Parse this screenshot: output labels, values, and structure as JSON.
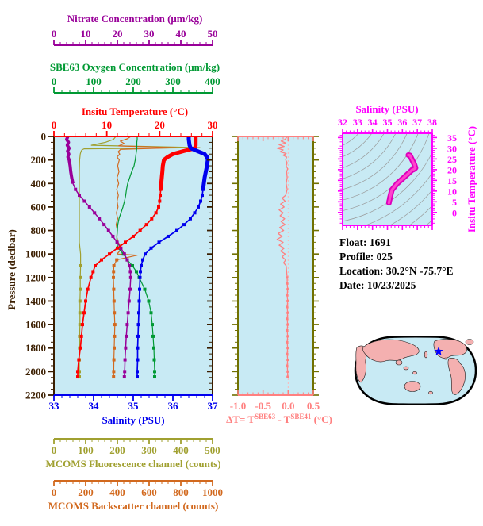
{
  "palette": {
    "plot_bg": "#C8EAF4",
    "spine": "#3B1E00",
    "background": "#FFFFFF"
  },
  "chart_data": [
    {
      "id": "profiles",
      "type": "line",
      "ylabel": "Pressure (decibar)",
      "ycolor": "#3B1E00",
      "ylim": [
        0,
        2200
      ],
      "y_major_step": 200,
      "y_minor_step": 50,
      "x_axes": [
        {
          "id": "nitrate",
          "label": "Nitrate Concentration (μm/kg)",
          "color": "#990099",
          "range": [
            0,
            50
          ],
          "ticks": [
            0,
            10,
            20,
            30,
            40,
            50
          ],
          "minor_step": 2,
          "decimals": 0
        },
        {
          "id": "oxygen",
          "label": "SBE63 Oxygen Concentration (μm/kg)",
          "color": "#009933",
          "range": [
            0,
            400
          ],
          "ticks": [
            0,
            100,
            200,
            300,
            400
          ],
          "minor_step": 20,
          "decimals": 0
        },
        {
          "id": "temperature",
          "label": "Insitu Temperature (°C)",
          "color": "#FF0000",
          "range": [
            0,
            30
          ],
          "ticks": [
            0,
            10,
            20,
            30
          ],
          "minor_step": 2,
          "decimals": 0
        },
        {
          "id": "salinity",
          "label": "Salinity (PSU)",
          "color": "#0000EE",
          "range": [
            33,
            37
          ],
          "ticks": [
            33,
            34,
            35,
            36,
            37
          ],
          "minor_step": 0.2,
          "decimals": 0
        },
        {
          "id": "fluorescence",
          "label": "MCOMS Fluorescence channel (counts)",
          "color": "#A0A030",
          "range": [
            0,
            500
          ],
          "ticks": [
            0,
            100,
            200,
            300,
            400,
            500
          ],
          "minor_step": 20,
          "decimals": 0
        },
        {
          "id": "backscatter",
          "label": "MCOMS Backscatter channel (counts)",
          "color": "#D2691E",
          "range": [
            0,
            1000
          ],
          "ticks": [
            0,
            200,
            400,
            600,
            800,
            1000
          ],
          "minor_step": 40,
          "decimals": 0
        }
      ],
      "series": [
        {
          "name": "Insitu Temperature",
          "axis": "temperature",
          "color": "#FF0000",
          "pressure": [
            0,
            25,
            50,
            75,
            100,
            125,
            150,
            175,
            200,
            250,
            300,
            350,
            400,
            450,
            500,
            550,
            600,
            650,
            700,
            750,
            800,
            850,
            900,
            950,
            1000,
            1050,
            1100,
            1150,
            1200,
            1300,
            1400,
            1500,
            1600,
            1700,
            1800,
            1900,
            2000,
            2045
          ],
          "values": [
            26.8,
            26.8,
            26.8,
            26.8,
            26.7,
            24.5,
            22.5,
            21.5,
            20.8,
            20.6,
            20.5,
            20.4,
            20.3,
            20.2,
            20.1,
            20.0,
            19.8,
            19.3,
            18.5,
            17.5,
            16.3,
            15.0,
            13.5,
            12.0,
            10.5,
            9.0,
            7.8,
            7.4,
            7.0,
            6.4,
            6.0,
            5.7,
            5.4,
            5.2,
            5.0,
            4.7,
            4.5,
            4.5
          ]
        },
        {
          "name": "Salinity",
          "axis": "salinity",
          "color": "#0000EE",
          "pressure": [
            0,
            25,
            50,
            75,
            100,
            125,
            150,
            175,
            200,
            250,
            300,
            350,
            400,
            450,
            500,
            550,
            600,
            650,
            700,
            750,
            800,
            850,
            900,
            950,
            1000,
            1050,
            1100,
            1150,
            1200,
            1300,
            1400,
            1500,
            1600,
            1700,
            1800,
            1900,
            2000,
            2045
          ],
          "values": [
            36.4,
            36.4,
            36.41,
            36.42,
            36.45,
            36.62,
            36.8,
            36.86,
            36.88,
            36.86,
            36.83,
            36.8,
            36.78,
            36.76,
            36.74,
            36.7,
            36.64,
            36.55,
            36.44,
            36.28,
            36.1,
            35.88,
            35.65,
            35.45,
            35.3,
            35.24,
            35.2,
            35.18,
            35.17,
            35.16,
            35.15,
            35.14,
            35.13,
            35.12,
            35.11,
            35.11,
            35.1,
            35.1
          ]
        },
        {
          "name": "Nitrate",
          "axis": "nitrate",
          "color": "#990099",
          "pressure": [
            0,
            25,
            50,
            75,
            100,
            125,
            150,
            175,
            200,
            250,
            300,
            350,
            400,
            450,
            500,
            550,
            600,
            650,
            700,
            750,
            800,
            850,
            900,
            950,
            1000,
            1050,
            1100,
            1150,
            1200,
            1300,
            1400,
            1500,
            1600,
            1700,
            1800,
            1900,
            2000,
            2045
          ],
          "values": [
            4.4,
            4.0,
            4.6,
            4.2,
            4.8,
            4.3,
            4.7,
            4.4,
            4.8,
            5.1,
            5.3,
            5.6,
            6.0,
            6.8,
            8.0,
            9.6,
            11.2,
            12.8,
            14.3,
            15.8,
            17.2,
            18.6,
            19.9,
            21.1,
            22.2,
            23.1,
            23.8,
            24.1,
            24.2,
            24.0,
            23.7,
            23.4,
            23.1,
            22.8,
            22.6,
            22.4,
            22.3,
            22.2
          ]
        },
        {
          "name": "SBE63 Oxygen",
          "axis": "oxygen",
          "color": "#009933",
          "pressure": [
            0,
            25,
            50,
            75,
            100,
            125,
            150,
            175,
            200,
            250,
            300,
            350,
            400,
            450,
            500,
            550,
            600,
            650,
            700,
            750,
            800,
            850,
            900,
            950,
            1000,
            1050,
            1100,
            1150,
            1200,
            1300,
            1400,
            1500,
            1600,
            1700,
            1800,
            1900,
            2000,
            2045
          ],
          "values": [
            210,
            210,
            209,
            209,
            209,
            208,
            207,
            206,
            205,
            202,
            196,
            191,
            186,
            183,
            181,
            178,
            174,
            169,
            164,
            161,
            160,
            159,
            158,
            162,
            175,
            185,
            198,
            208,
            215,
            229,
            239,
            245,
            248,
            250,
            252,
            253,
            254,
            254
          ]
        },
        {
          "name": "MCOMS Fluorescence",
          "axis": "fluorescence",
          "color": "#A0A030",
          "pressure": [
            0,
            25,
            50,
            75,
            95,
            105,
            115,
            130,
            150,
            200,
            300,
            400,
            500,
            600,
            700,
            800,
            900,
            1000,
            1100,
            1200,
            1300,
            1400,
            1500,
            1600,
            1700,
            1800,
            1900,
            2000,
            2045
          ],
          "values": [
            195,
            188,
            162,
            118,
            460,
            95,
            88,
            85,
            83,
            81,
            80,
            80,
            80,
            80,
            80,
            80,
            80,
            84,
            84,
            83,
            83,
            82,
            82,
            82,
            81,
            81,
            80,
            80,
            80
          ]
        },
        {
          "name": "MCOMS Backscatter",
          "axis": "backscatter",
          "color": "#D2691E",
          "pressure": [
            0,
            20,
            40,
            60,
            80,
            96,
            110,
            130,
            150,
            175,
            200,
            250,
            300,
            350,
            400,
            450,
            500,
            550,
            600,
            650,
            700,
            750,
            800,
            850,
            900,
            950,
            1000,
            1010,
            1050,
            1100,
            1150,
            1200,
            1300,
            1400,
            1500,
            1600,
            1700,
            1800,
            1900,
            2000,
            2045
          ],
          "values": [
            485,
            462,
            418,
            442,
            408,
            770,
            420,
            405,
            415,
            398,
            412,
            402,
            410,
            398,
            408,
            396,
            406,
            398,
            404,
            394,
            402,
            392,
            400,
            396,
            404,
            430,
            398,
            525,
            396,
            378,
            376,
            375,
            377,
            379,
            381,
            384,
            382,
            380,
            378,
            377,
            376
          ]
        }
      ]
    },
    {
      "id": "delta_t",
      "type": "line",
      "xlim": [
        -1.0,
        0.5
      ],
      "major_ticks": [
        -1.0,
        -0.5,
        0.0,
        0.5
      ],
      "minor_step": 0.1,
      "decimals": 1,
      "line_color": "#FF8080",
      "spine_color": "#707000",
      "zero_line_color": "#FFB6B6",
      "label_parts": {
        "p1": "ΔT= T",
        "s1": "SBE63",
        "p2": " - T",
        "s2": "SBE41",
        "p3": " (°C)"
      },
      "pressure": [
        0,
        25,
        40,
        55,
        70,
        85,
        100,
        115,
        130,
        145,
        160,
        175,
        200,
        225,
        250,
        275,
        300,
        350,
        400,
        450,
        500,
        525,
        550,
        575,
        600,
        625,
        650,
        675,
        700,
        725,
        750,
        775,
        800,
        825,
        850,
        875,
        900,
        925,
        950,
        975,
        1000,
        1025,
        1050,
        1075,
        1100,
        1150,
        1200,
        1250,
        1300,
        1350,
        1400,
        1450,
        1500,
        1550,
        1600,
        1650,
        1700,
        1750,
        1800,
        1850,
        1900,
        1950,
        2000,
        2045
      ],
      "values": [
        -0.02,
        -0.06,
        -0.14,
        -0.05,
        -0.18,
        -0.08,
        -0.22,
        -0.1,
        -0.16,
        -0.04,
        -0.1,
        -0.03,
        -0.05,
        -0.02,
        -0.04,
        -0.01,
        -0.03,
        -0.02,
        -0.04,
        -0.02,
        -0.05,
        -0.12,
        -0.06,
        -0.15,
        -0.08,
        -0.18,
        -0.1,
        -0.16,
        -0.07,
        -0.14,
        -0.06,
        -0.17,
        -0.09,
        -0.2,
        -0.12,
        -0.22,
        -0.1,
        -0.18,
        -0.08,
        -0.15,
        -0.06,
        -0.12,
        -0.05,
        -0.09,
        -0.04,
        -0.03,
        -0.02,
        -0.02,
        -0.01,
        -0.02,
        -0.01,
        -0.02,
        -0.01,
        -0.02,
        -0.01,
        -0.02,
        -0.01,
        -0.02,
        -0.01,
        -0.02,
        -0.01,
        -0.02,
        -0.01,
        -0.01
      ]
    },
    {
      "id": "ts_diagram",
      "type": "line",
      "title": "Salinity (PSU)",
      "ylabel": "Insitu Temperature (°C)",
      "frame_color": "#FF00FF",
      "curve_color": "#FF44CC",
      "curve_edge": "#DD00BB",
      "contour_color": "#999999",
      "xlim": [
        32,
        38
      ],
      "xticks": [
        32,
        33,
        34,
        35,
        36,
        37,
        38
      ],
      "x_minor_step": 0.25,
      "yticks": [
        0,
        5,
        10,
        15,
        20,
        25,
        30,
        35
      ],
      "y_minor_step": 1,
      "ylim": [
        -6,
        37
      ],
      "salinity": [
        36.4,
        36.42,
        36.5,
        36.8,
        36.88,
        36.85,
        36.82,
        36.78,
        36.74,
        36.64,
        36.44,
        36.1,
        35.65,
        35.3,
        35.2,
        35.17,
        35.15,
        35.13,
        35.11,
        35.1
      ],
      "temperature": [
        26.8,
        26.8,
        26.7,
        22.5,
        20.8,
        20.6,
        20.5,
        20.3,
        20.1,
        19.8,
        18.5,
        16.3,
        13.5,
        10.5,
        7.8,
        7.0,
        6.0,
        5.5,
        5.0,
        4.5
      ]
    }
  ],
  "info": {
    "color": "#000000",
    "lines": [
      "Float:  1691",
      "Profile:  025",
      "Location:  30.2°N  -75.7°E",
      "Date:  10/23/2025"
    ]
  },
  "map": {
    "ocean_color": "#C8EAF4",
    "land_color": "#F4B0B0",
    "outline_color": "#000000",
    "coast_color": "#1A1A1A",
    "star_color": "#0000FF"
  }
}
